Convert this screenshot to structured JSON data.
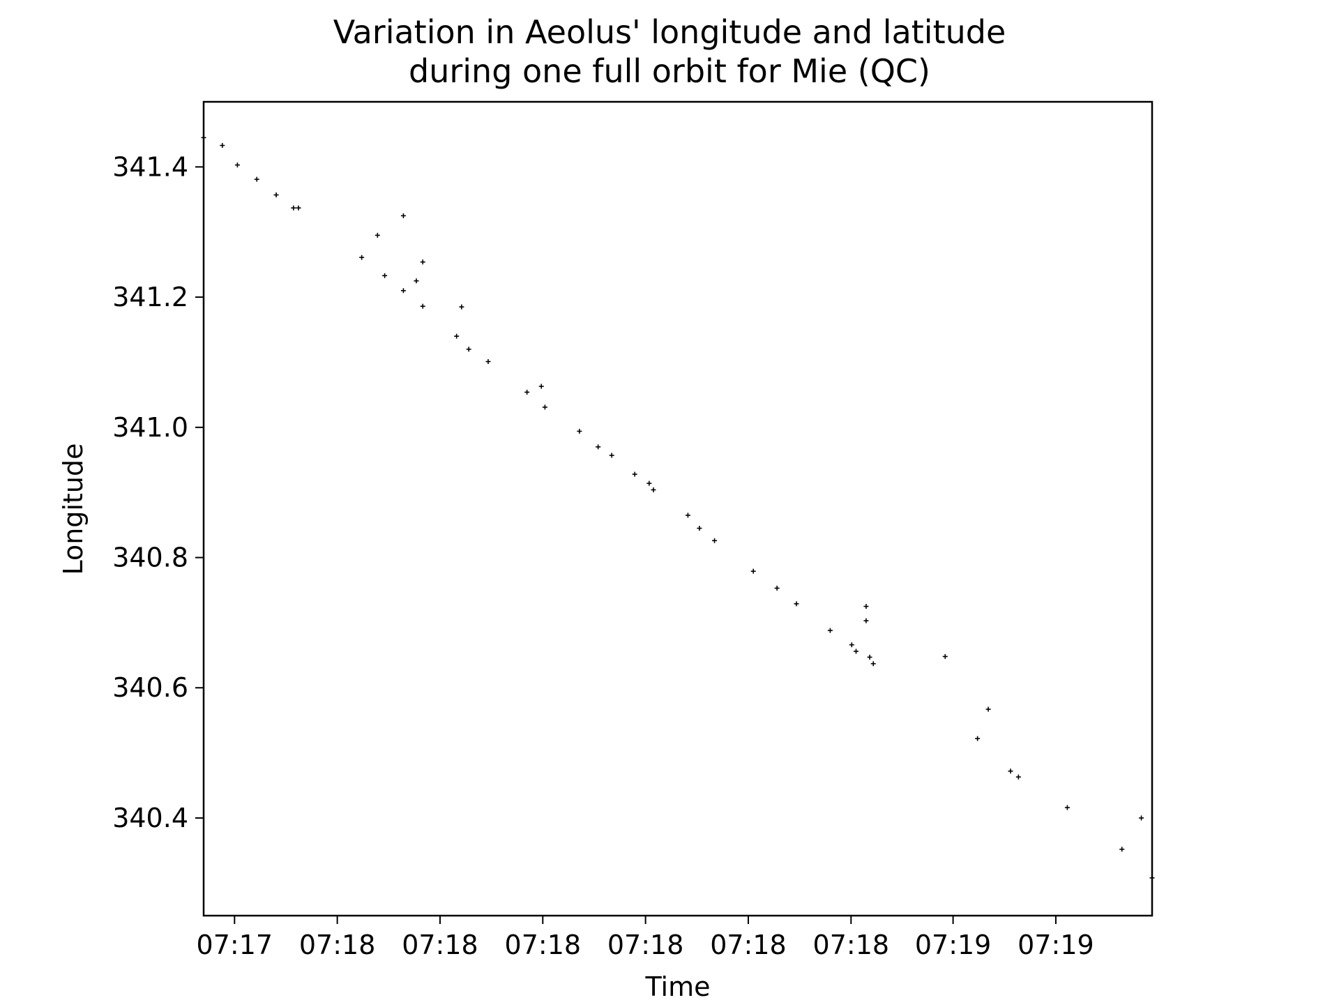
{
  "chart_data": {
    "type": "scatter",
    "title": "Variation in Aeolus' longitude and latitude",
    "subtitle": "during one full orbit for Mie (QC)",
    "xlabel": "Time",
    "ylabel": "Longitude",
    "x_unit": "seconds after 07:17:00",
    "xlim": [
      20,
      152
    ],
    "ylim": [
      340.25,
      341.5
    ],
    "grid": false,
    "legend": "none",
    "marker_color": "#000000",
    "x_ticks": [
      {
        "value": 24.3,
        "label": "07:17"
      },
      {
        "value": 38.6,
        "label": "07:18"
      },
      {
        "value": 52.9,
        "label": "07:18"
      },
      {
        "value": 67.2,
        "label": "07:18"
      },
      {
        "value": 81.5,
        "label": "07:18"
      },
      {
        "value": 95.8,
        "label": "07:18"
      },
      {
        "value": 110.1,
        "label": "07:18"
      },
      {
        "value": 124.3,
        "label": "07:19"
      },
      {
        "value": 138.6,
        "label": "07:19"
      }
    ],
    "y_ticks": [
      {
        "value": 340.4,
        "label": "340.4"
      },
      {
        "value": 340.6,
        "label": "340.6"
      },
      {
        "value": 340.8,
        "label": "340.8"
      },
      {
        "value": 341.0,
        "label": "341.0"
      },
      {
        "value": 341.2,
        "label": "341.2"
      },
      {
        "value": 341.4,
        "label": "341.4"
      }
    ],
    "points": [
      [
        20.0,
        341.445
      ],
      [
        22.6,
        341.433
      ],
      [
        24.7,
        341.403
      ],
      [
        27.4,
        341.381
      ],
      [
        30.1,
        341.357
      ],
      [
        32.5,
        341.337
      ],
      [
        33.2,
        341.337
      ],
      [
        42.0,
        341.261
      ],
      [
        44.2,
        341.295
      ],
      [
        45.2,
        341.233
      ],
      [
        47.8,
        341.325
      ],
      [
        47.8,
        341.21
      ],
      [
        49.6,
        341.225
      ],
      [
        50.5,
        341.254
      ],
      [
        50.5,
        341.186
      ],
      [
        55.9,
        341.185
      ],
      [
        55.2,
        341.14
      ],
      [
        56.9,
        341.12
      ],
      [
        59.6,
        341.101
      ],
      [
        65.0,
        341.054
      ],
      [
        67.0,
        341.063
      ],
      [
        67.5,
        341.031
      ],
      [
        72.3,
        340.994
      ],
      [
        74.9,
        340.97
      ],
      [
        76.8,
        340.957
      ],
      [
        80.0,
        340.928
      ],
      [
        82.0,
        340.914
      ],
      [
        82.6,
        340.904
      ],
      [
        87.4,
        340.865
      ],
      [
        89.0,
        340.845
      ],
      [
        91.1,
        340.826
      ],
      [
        96.5,
        340.779
      ],
      [
        99.8,
        340.753
      ],
      [
        102.5,
        340.729
      ],
      [
        107.2,
        340.688
      ],
      [
        110.2,
        340.666
      ],
      [
        110.8,
        340.656
      ],
      [
        112.2,
        340.725
      ],
      [
        112.2,
        340.703
      ],
      [
        112.7,
        340.647
      ],
      [
        113.2,
        340.637
      ],
      [
        123.2,
        340.648
      ],
      [
        127.7,
        340.522
      ],
      [
        129.2,
        340.567
      ],
      [
        132.3,
        340.472
      ],
      [
        133.4,
        340.463
      ],
      [
        140.2,
        340.416
      ],
      [
        147.8,
        340.352
      ],
      [
        150.5,
        340.4
      ],
      [
        152.0,
        340.308
      ]
    ]
  }
}
